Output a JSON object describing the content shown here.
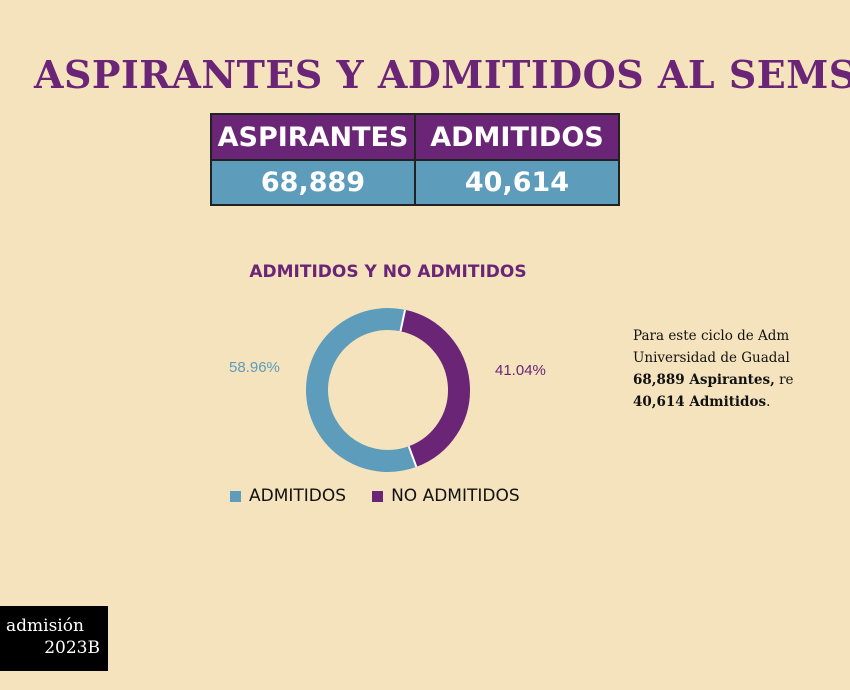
{
  "title": "ASPIRANTES Y ADMITIDOS AL SEMS",
  "summary": {
    "headers": [
      "ASPIRANTES",
      "ADMITIDOS"
    ],
    "values": [
      "68,889",
      "40,614"
    ]
  },
  "chart_data": {
    "type": "pie",
    "title": "ADMITIDOS Y NO ADMITIDOS",
    "donut": true,
    "categories": [
      "ADMITIDOS",
      "NO ADMITIDOS"
    ],
    "values": [
      58.96,
      41.04
    ],
    "labels": [
      "58.96%",
      "41.04%"
    ],
    "colors": [
      "#5e9cbc",
      "#6b2577"
    ],
    "legend": "bottom"
  },
  "note": {
    "line1": "Para este ciclo de Adm",
    "line2": "Universidad de Guadal",
    "line3_bold": "68,889 Aspirantes,",
    "line3_rest": " re",
    "line4_bold": "40,614 Admitidos",
    "line4_rest": "."
  },
  "badge": {
    "line1": "admisión",
    "line2": "2023B"
  }
}
